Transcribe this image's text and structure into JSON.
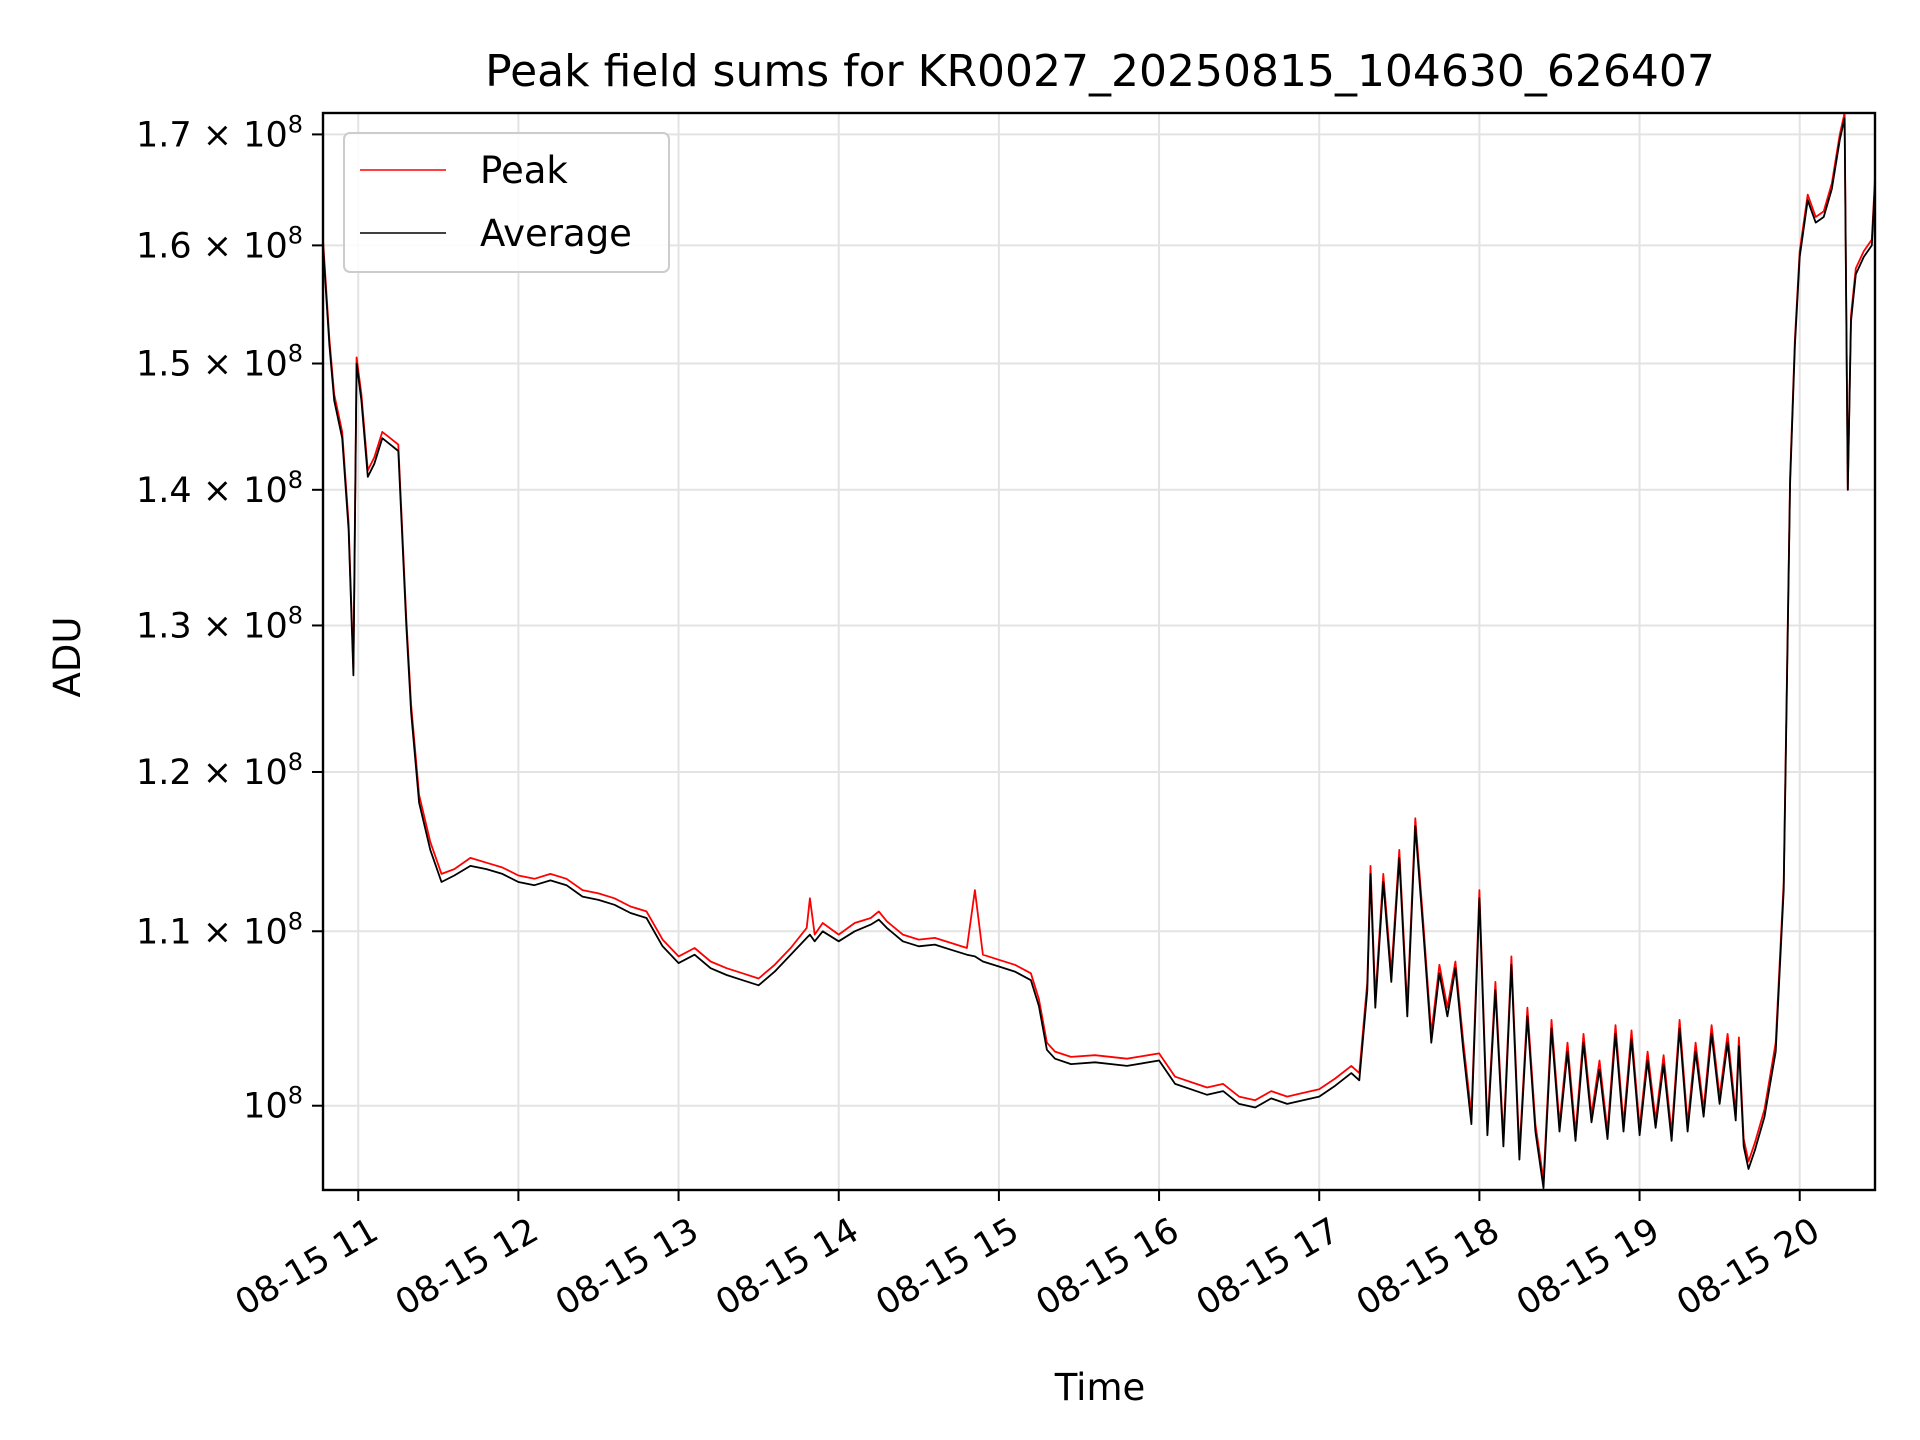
{
  "chart_data": {
    "type": "line",
    "title": "Peak field sums for KR0027_20250815_104630_626407",
    "xlabel": "Time",
    "ylabel": "ADU",
    "yscale": "log",
    "ylim": [
      95500000,
      172000000
    ],
    "xlim_hours": [
      10.78,
      20.47
    ],
    "x_ticks": [
      {
        "value": 11,
        "label": "08-15 11"
      },
      {
        "value": 12,
        "label": "08-15 12"
      },
      {
        "value": 13,
        "label": "08-15 13"
      },
      {
        "value": 14,
        "label": "08-15 14"
      },
      {
        "value": 15,
        "label": "08-15 15"
      },
      {
        "value": 16,
        "label": "08-15 16"
      },
      {
        "value": 17,
        "label": "08-15 17"
      },
      {
        "value": 18,
        "label": "08-15 18"
      },
      {
        "value": 19,
        "label": "08-15 19"
      },
      {
        "value": 20,
        "label": "08-15 20"
      }
    ],
    "y_ticks": [
      {
        "value": 100000000,
        "mantissa": "",
        "exp": "8"
      },
      {
        "value": 110000000,
        "mantissa": "1.1",
        "exp": "8"
      },
      {
        "value": 120000000,
        "mantissa": "1.2",
        "exp": "8"
      },
      {
        "value": 130000000,
        "mantissa": "1.3",
        "exp": "8"
      },
      {
        "value": 140000000,
        "mantissa": "1.4",
        "exp": "8"
      },
      {
        "value": 150000000,
        "mantissa": "1.5",
        "exp": "8"
      },
      {
        "value": 160000000,
        "mantissa": "1.6",
        "exp": "8"
      },
      {
        "value": 170000000,
        "mantissa": "1.7",
        "exp": "8"
      }
    ],
    "grid": true,
    "legend_position": "upper-left",
    "series": [
      {
        "name": "Peak",
        "color": "#ff0000",
        "x": [
          10.78,
          10.82,
          10.85,
          10.9,
          10.94,
          10.97,
          10.99,
          11.02,
          11.06,
          11.1,
          11.15,
          11.2,
          11.25,
          11.3,
          11.33,
          11.38,
          11.45,
          11.52,
          11.6,
          11.7,
          11.8,
          11.9,
          12.0,
          12.1,
          12.2,
          12.3,
          12.4,
          12.5,
          12.6,
          12.7,
          12.8,
          12.9,
          13.0,
          13.1,
          13.2,
          13.3,
          13.4,
          13.5,
          13.6,
          13.7,
          13.8,
          13.82,
          13.85,
          13.9,
          14.0,
          14.1,
          14.2,
          14.25,
          14.3,
          14.4,
          14.5,
          14.6,
          14.7,
          14.8,
          14.85,
          14.9,
          15.0,
          15.1,
          15.2,
          15.25,
          15.3,
          15.35,
          15.45,
          15.6,
          15.8,
          16.0,
          16.1,
          16.2,
          16.3,
          16.4,
          16.5,
          16.6,
          16.7,
          16.8,
          16.9,
          17.0,
          17.1,
          17.2,
          17.25,
          17.3,
          17.32,
          17.35,
          17.4,
          17.45,
          17.5,
          17.55,
          17.6,
          17.65,
          17.7,
          17.75,
          17.8,
          17.85,
          17.9,
          17.95,
          18.0,
          18.05,
          18.1,
          18.15,
          18.2,
          18.25,
          18.3,
          18.35,
          18.4,
          18.45,
          18.5,
          18.55,
          18.6,
          18.65,
          18.7,
          18.75,
          18.8,
          18.85,
          18.9,
          18.95,
          19.0,
          19.05,
          19.1,
          19.15,
          19.2,
          19.25,
          19.3,
          19.35,
          19.4,
          19.45,
          19.5,
          19.55,
          19.6,
          19.62,
          19.65,
          19.68,
          19.72,
          19.78,
          19.85,
          19.9,
          19.94,
          19.97,
          20.0,
          20.05,
          20.1,
          20.15,
          20.2,
          20.25,
          20.28,
          20.3,
          20.32,
          20.35,
          20.4,
          20.45,
          20.47
        ],
        "y": [
          160500000,
          152000000,
          147500000,
          144500000,
          137500000,
          127000000,
          150500000,
          147500000,
          141500000,
          142500000,
          144500000,
          144000000,
          143500000,
          130500000,
          124500000,
          118500000,
          115500000,
          113500000,
          113800000,
          114500000,
          114200000,
          113900000,
          113400000,
          113200000,
          113500000,
          113200000,
          112500000,
          112300000,
          112000000,
          111500000,
          111200000,
          109500000,
          108500000,
          109000000,
          108200000,
          107800000,
          107500000,
          107200000,
          108000000,
          109000000,
          110200000,
          112000000,
          109800000,
          110500000,
          109800000,
          110500000,
          110800000,
          111200000,
          110600000,
          109800000,
          109500000,
          109600000,
          109300000,
          109000000,
          112500000,
          108600000,
          108300000,
          108000000,
          107500000,
          106000000,
          103500000,
          103000000,
          102700000,
          102800000,
          102600000,
          102900000,
          101600000,
          101300000,
          101000000,
          101200000,
          100500000,
          100300000,
          100800000,
          100500000,
          100700000,
          100900000,
          101500000,
          102200000,
          101800000,
          107000000,
          114000000,
          106000000,
          113500000,
          107500000,
          115000000,
          105500000,
          117000000,
          110500000,
          104000000,
          108000000,
          105500000,
          108200000,
          103500000,
          99500000,
          112500000,
          98800000,
          107000000,
          98200000,
          108500000,
          97500000,
          105500000,
          99000000,
          96000000,
          104800000,
          99000000,
          103500000,
          98500000,
          104000000,
          99500000,
          102500000,
          98600000,
          104500000,
          99000000,
          104200000,
          98800000,
          103000000,
          99200000,
          102800000,
          98500000,
          104800000,
          99000000,
          103500000,
          99800000,
          104500000,
          100500000,
          104000000,
          99600000,
          103800000,
          98200000,
          97000000,
          98000000,
          99800000,
          103500000,
          113000000,
          141000000,
          152000000,
          159500000,
          164500000,
          162500000,
          163000000,
          165500000,
          170000000,
          172000000,
          140000000,
          154000000,
          158000000,
          159500000,
          160500000,
          166000000
        ]
      },
      {
        "name": "Average",
        "color": "#000000",
        "x": [
          10.78,
          10.82,
          10.85,
          10.9,
          10.94,
          10.97,
          10.99,
          11.02,
          11.06,
          11.1,
          11.15,
          11.2,
          11.25,
          11.3,
          11.33,
          11.38,
          11.45,
          11.52,
          11.6,
          11.7,
          11.8,
          11.9,
          12.0,
          12.1,
          12.2,
          12.3,
          12.4,
          12.5,
          12.6,
          12.7,
          12.8,
          12.9,
          13.0,
          13.1,
          13.2,
          13.3,
          13.4,
          13.5,
          13.6,
          13.7,
          13.8,
          13.82,
          13.85,
          13.9,
          14.0,
          14.1,
          14.2,
          14.25,
          14.3,
          14.4,
          14.5,
          14.6,
          14.7,
          14.8,
          14.85,
          14.9,
          15.0,
          15.1,
          15.2,
          15.25,
          15.3,
          15.35,
          15.45,
          15.6,
          15.8,
          16.0,
          16.1,
          16.2,
          16.3,
          16.4,
          16.5,
          16.6,
          16.7,
          16.8,
          16.9,
          17.0,
          17.1,
          17.2,
          17.25,
          17.3,
          17.32,
          17.35,
          17.4,
          17.45,
          17.5,
          17.55,
          17.6,
          17.65,
          17.7,
          17.75,
          17.8,
          17.85,
          17.9,
          17.95,
          18.0,
          18.05,
          18.1,
          18.15,
          18.2,
          18.25,
          18.3,
          18.35,
          18.4,
          18.45,
          18.5,
          18.55,
          18.6,
          18.65,
          18.7,
          18.75,
          18.8,
          18.85,
          18.9,
          18.95,
          19.0,
          19.05,
          19.1,
          19.15,
          19.2,
          19.25,
          19.3,
          19.35,
          19.4,
          19.45,
          19.5,
          19.55,
          19.6,
          19.62,
          19.65,
          19.68,
          19.72,
          19.78,
          19.85,
          19.9,
          19.94,
          19.97,
          20.0,
          20.05,
          20.1,
          20.15,
          20.2,
          20.25,
          20.28,
          20.3,
          20.32,
          20.35,
          20.4,
          20.45,
          20.47
        ],
        "y": [
          160000000,
          151500000,
          147000000,
          144000000,
          137000000,
          126500000,
          150000000,
          147000000,
          141000000,
          142000000,
          144000000,
          143500000,
          143000000,
          130000000,
          124000000,
          118000000,
          115000000,
          113000000,
          113400000,
          114000000,
          113800000,
          113500000,
          113000000,
          112800000,
          113100000,
          112800000,
          112100000,
          111900000,
          111600000,
          111100000,
          110800000,
          109100000,
          108100000,
          108600000,
          107800000,
          107400000,
          107100000,
          106800000,
          107600000,
          108600000,
          109600000,
          109800000,
          109400000,
          110000000,
          109400000,
          110000000,
          110400000,
          110700000,
          110200000,
          109400000,
          109100000,
          109200000,
          108900000,
          108600000,
          108500000,
          108200000,
          107900000,
          107600000,
          107100000,
          105600000,
          103100000,
          102600000,
          102300000,
          102400000,
          102200000,
          102500000,
          101200000,
          100900000,
          100600000,
          100800000,
          100100000,
          99900000,
          100400000,
          100100000,
          100300000,
          100500000,
          101100000,
          101800000,
          101400000,
          106500000,
          113500000,
          105500000,
          113000000,
          107000000,
          114500000,
          105000000,
          116500000,
          110000000,
          103500000,
          107500000,
          105000000,
          107800000,
          103000000,
          99000000,
          112000000,
          98400000,
          106500000,
          97800000,
          108000000,
          97100000,
          105000000,
          98600000,
          95600000,
          104300000,
          98600000,
          103000000,
          98100000,
          103500000,
          99100000,
          102000000,
          98200000,
          104000000,
          98600000,
          103700000,
          98400000,
          102500000,
          98800000,
          102300000,
          98100000,
          104300000,
          98600000,
          103000000,
          99400000,
          104000000,
          100100000,
          103500000,
          99200000,
          103300000,
          97800000,
          96600000,
          97600000,
          99400000,
          103000000,
          112500000,
          140500000,
          151500000,
          159000000,
          164000000,
          162000000,
          162500000,
          165000000,
          169500000,
          171500000,
          140000000,
          153500000,
          157500000,
          159000000,
          160000000,
          165500000
        ]
      }
    ]
  }
}
